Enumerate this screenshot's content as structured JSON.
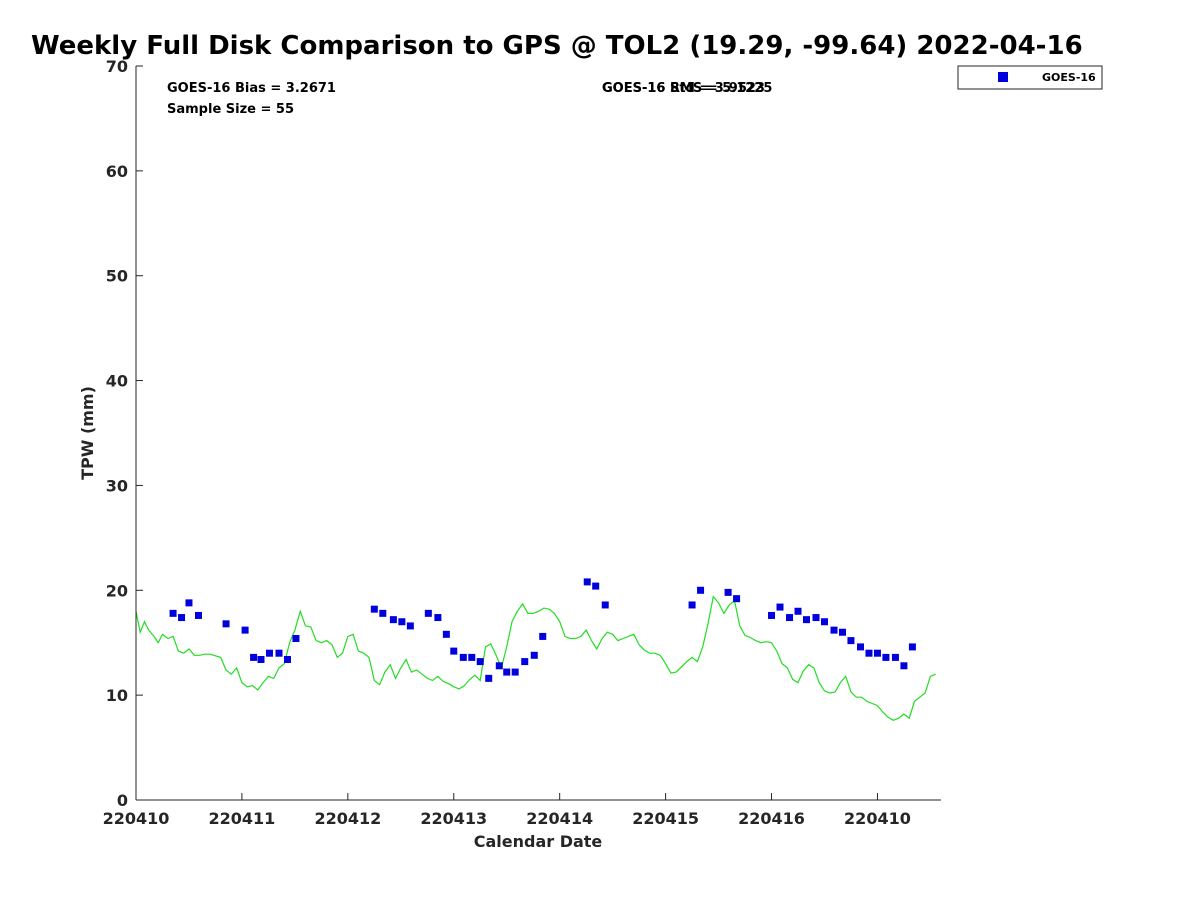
{
  "chart_data": {
    "type": "scatter",
    "title": "Weekly Full Disk Comparison to GPS @ TOL2 (19.29, -99.64) 2022-04-16",
    "xlabel": "Calendar Date",
    "ylabel": "TPW (mm)",
    "xlim": [
      0,
      7.6
    ],
    "ylim": [
      0,
      70
    ],
    "yticks": [
      0,
      10,
      20,
      30,
      40,
      50,
      60,
      70
    ],
    "xticks": [
      {
        "value": 0,
        "label": "220410"
      },
      {
        "value": 1,
        "label": "220411"
      },
      {
        "value": 2,
        "label": "220412"
      },
      {
        "value": 3,
        "label": "220413"
      },
      {
        "value": 4,
        "label": "220414"
      },
      {
        "value": 5,
        "label": "220415"
      },
      {
        "value": 6,
        "label": "220416"
      },
      {
        "value": 7,
        "label": "220410"
      }
    ],
    "grid": false,
    "legend_position": "top-right, outside plot",
    "annotations": {
      "bias": "GOES-16 Bias = 3.2671",
      "sample_size": "Sample Size = 55",
      "overlap_a": "GOES-16 Std = 3.9523",
      "overlap_b": "GOES-16 RMS = 5.1225"
    },
    "series": [
      {
        "name": "GOES-16",
        "kind": "scatter",
        "marker": "square",
        "color": "#0000dd",
        "x": [
          0.35,
          0.43,
          0.5,
          0.59,
          0.85,
          1.03,
          1.11,
          1.18,
          1.26,
          1.35,
          1.43,
          1.51,
          2.25,
          2.33,
          2.43,
          2.51,
          2.59,
          2.76,
          2.85,
          2.93,
          3.0,
          3.09,
          3.17,
          3.25,
          3.33,
          3.43,
          3.5,
          3.58,
          3.67,
          3.76,
          3.84,
          4.26,
          4.34,
          4.43,
          5.25,
          5.33,
          5.59,
          5.67,
          6.0,
          6.08,
          6.17,
          6.25,
          6.33,
          6.42,
          6.5,
          6.59,
          6.67,
          6.75,
          6.84,
          6.92,
          7.0,
          7.08,
          7.17,
          7.25,
          7.33
        ],
        "y": [
          17.8,
          17.4,
          18.8,
          17.6,
          16.8,
          16.2,
          13.6,
          13.4,
          14.0,
          14.0,
          13.4,
          15.4,
          18.2,
          17.8,
          17.2,
          17.0,
          16.6,
          17.8,
          17.4,
          15.8,
          14.2,
          13.6,
          13.6,
          13.2,
          11.6,
          12.8,
          12.2,
          12.2,
          13.2,
          13.8,
          15.6,
          20.8,
          20.4,
          18.6,
          18.6,
          20.0,
          19.8,
          19.2,
          17.6,
          18.4,
          17.4,
          18.0,
          17.2,
          17.4,
          17.0,
          16.2,
          16.0,
          15.2,
          14.6,
          14.0,
          14.0,
          13.6,
          13.6,
          12.8,
          14.6
        ]
      },
      {
        "name": "",
        "kind": "line",
        "color": "#22dd22",
        "x": [
          0,
          0.04,
          0.08,
          0.12,
          0.17,
          0.21,
          0.25,
          0.3,
          0.35,
          0.4,
          0.45,
          0.5,
          0.55,
          0.6,
          0.65,
          0.7,
          0.8,
          0.85,
          0.9,
          0.95,
          1.0,
          1.05,
          1.1,
          1.15,
          1.2,
          1.25,
          1.3,
          1.35,
          1.4,
          1.45,
          1.5,
          1.55,
          1.6,
          1.65,
          1.7,
          1.75,
          1.8,
          1.85,
          1.9,
          1.95,
          2.0,
          2.05,
          2.1,
          2.15,
          2.2,
          2.25,
          2.3,
          2.35,
          2.4,
          2.45,
          2.5,
          2.55,
          2.6,
          2.65,
          2.7,
          2.75,
          2.8,
          2.85,
          2.9,
          2.95,
          3.0,
          3.05,
          3.1,
          3.15,
          3.2,
          3.25,
          3.3,
          3.35,
          3.4,
          3.45,
          3.5,
          3.55,
          3.6,
          3.65,
          3.7,
          3.75,
          3.8,
          3.85,
          3.9,
          3.95,
          4.0,
          4.05,
          4.1,
          4.15,
          4.2,
          4.25,
          4.3,
          4.35,
          4.4,
          4.45,
          4.5,
          4.55,
          4.6,
          4.65,
          4.7,
          4.75,
          4.8,
          4.85,
          4.9,
          4.95,
          5.0,
          5.05,
          5.1,
          5.15,
          5.2,
          5.25,
          5.3,
          5.35,
          5.4,
          5.45,
          5.5,
          5.55,
          5.6,
          5.65,
          5.7,
          5.75,
          5.8,
          5.85,
          5.9,
          5.95,
          6.0,
          6.05,
          6.1,
          6.15,
          6.2,
          6.25,
          6.3,
          6.35,
          6.4,
          6.45,
          6.5,
          6.55,
          6.6,
          6.65,
          6.7,
          6.75,
          6.8,
          6.85,
          6.9,
          6.95,
          7.0,
          7.05,
          7.1,
          7.15,
          7.2,
          7.25,
          7.3,
          7.35,
          7.4,
          7.45,
          7.5,
          7.55
        ],
        "y": [
          18.0,
          16.0,
          17.0,
          16.2,
          15.6,
          15.0,
          15.8,
          15.4,
          15.6,
          14.2,
          14.0,
          14.4,
          13.8,
          13.8,
          13.9,
          13.9,
          13.6,
          12.4,
          12.0,
          12.6,
          11.2,
          10.8,
          10.9,
          10.5,
          11.2,
          11.8,
          11.6,
          12.6,
          13.0,
          15.0,
          16.2,
          18.0,
          16.6,
          16.5,
          15.2,
          15.0,
          15.2,
          14.8,
          13.6,
          14.0,
          15.6,
          15.8,
          14.2,
          14.0,
          13.6,
          11.4,
          11.0,
          12.2,
          12.9,
          11.6,
          12.6,
          13.4,
          12.2,
          12.4,
          12.0,
          11.6,
          11.4,
          11.8,
          11.3,
          11.1,
          10.8,
          10.6,
          10.9,
          11.5,
          11.9,
          11.4,
          14.6,
          14.9,
          13.8,
          12.6,
          14.6,
          17.0,
          18.0,
          18.7,
          17.8,
          17.8,
          18.0,
          18.3,
          18.2,
          17.8,
          17.0,
          15.6,
          15.4,
          15.4,
          15.6,
          16.2,
          15.2,
          14.4,
          15.4,
          16.0,
          15.8,
          15.2,
          15.4,
          15.6,
          15.8,
          14.8,
          14.3,
          14.0,
          14.0,
          13.8,
          13.0,
          12.1,
          12.2,
          12.7,
          13.2,
          13.6,
          13.2,
          14.6,
          16.8,
          19.4,
          18.8,
          17.8,
          18.6,
          19.0,
          16.6,
          15.7,
          15.5,
          15.2,
          15.0,
          15.1,
          15.0,
          14.2,
          13.0,
          12.6,
          11.5,
          11.2,
          12.3,
          12.9,
          12.6,
          11.2,
          10.4,
          10.2,
          10.3,
          11.2,
          11.8,
          10.3,
          9.8,
          9.8,
          9.4,
          9.2,
          9.0,
          8.4,
          7.9,
          7.6,
          7.8,
          8.2,
          7.8,
          9.4,
          9.8,
          10.2,
          11.8,
          12.0
        ]
      }
    ]
  }
}
